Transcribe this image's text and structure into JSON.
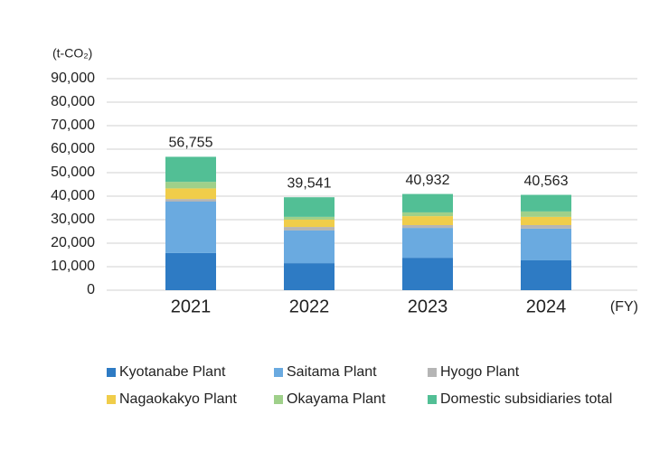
{
  "chart_data": {
    "type": "stacked-bar",
    "y_label": "(t-CO₂)",
    "x_label": "(FY)",
    "categories": [
      "2021",
      "2022",
      "2023",
      "2024"
    ],
    "series": [
      {
        "name": "Kyotanabe Plant",
        "color": "#2e7bc4",
        "values": [
          15800,
          11500,
          13800,
          12700
        ]
      },
      {
        "name": "Saitama Plant",
        "color": "#6aaae0",
        "values": [
          21900,
          13900,
          12700,
          13500
        ]
      },
      {
        "name": "Hyogo Plant",
        "color": "#b5b5b5",
        "values": [
          1100,
          1500,
          1200,
          1500
        ]
      },
      {
        "name": "Nagaokakyo Plant",
        "color": "#f0cd4a",
        "values": [
          4500,
          3100,
          3800,
          3500
        ]
      },
      {
        "name": "Okayama Plant",
        "color": "#9fd08a",
        "values": [
          2800,
          1200,
          1600,
          2300
        ]
      },
      {
        "name": "Domestic subsidiaries total",
        "color": "#52bf95",
        "values": [
          10655,
          8341,
          7832,
          7063
        ]
      }
    ],
    "totals": {
      "values": [
        56755,
        39541,
        40932,
        40563
      ],
      "value_labels": [
        "56,755",
        "39,541",
        "40,932",
        "40,563"
      ]
    },
    "ylim": [
      0,
      90000
    ],
    "yticks": [
      0,
      {
        "value": 10000,
        "label": "10,000"
      },
      {
        "value": 20000,
        "label": "20,000"
      },
      {
        "value": 30000,
        "label": "30,000"
      },
      {
        "value": 40000,
        "label": "40,000"
      },
      {
        "value": 50000,
        "label": "50,000"
      },
      {
        "value": 60000,
        "label": "60,000"
      },
      {
        "value": 70000,
        "label": "70,000"
      },
      {
        "value": 80000,
        "label": "80,000"
      },
      {
        "value": 90000,
        "label": "90,000"
      }
    ],
    "grid": true
  }
}
